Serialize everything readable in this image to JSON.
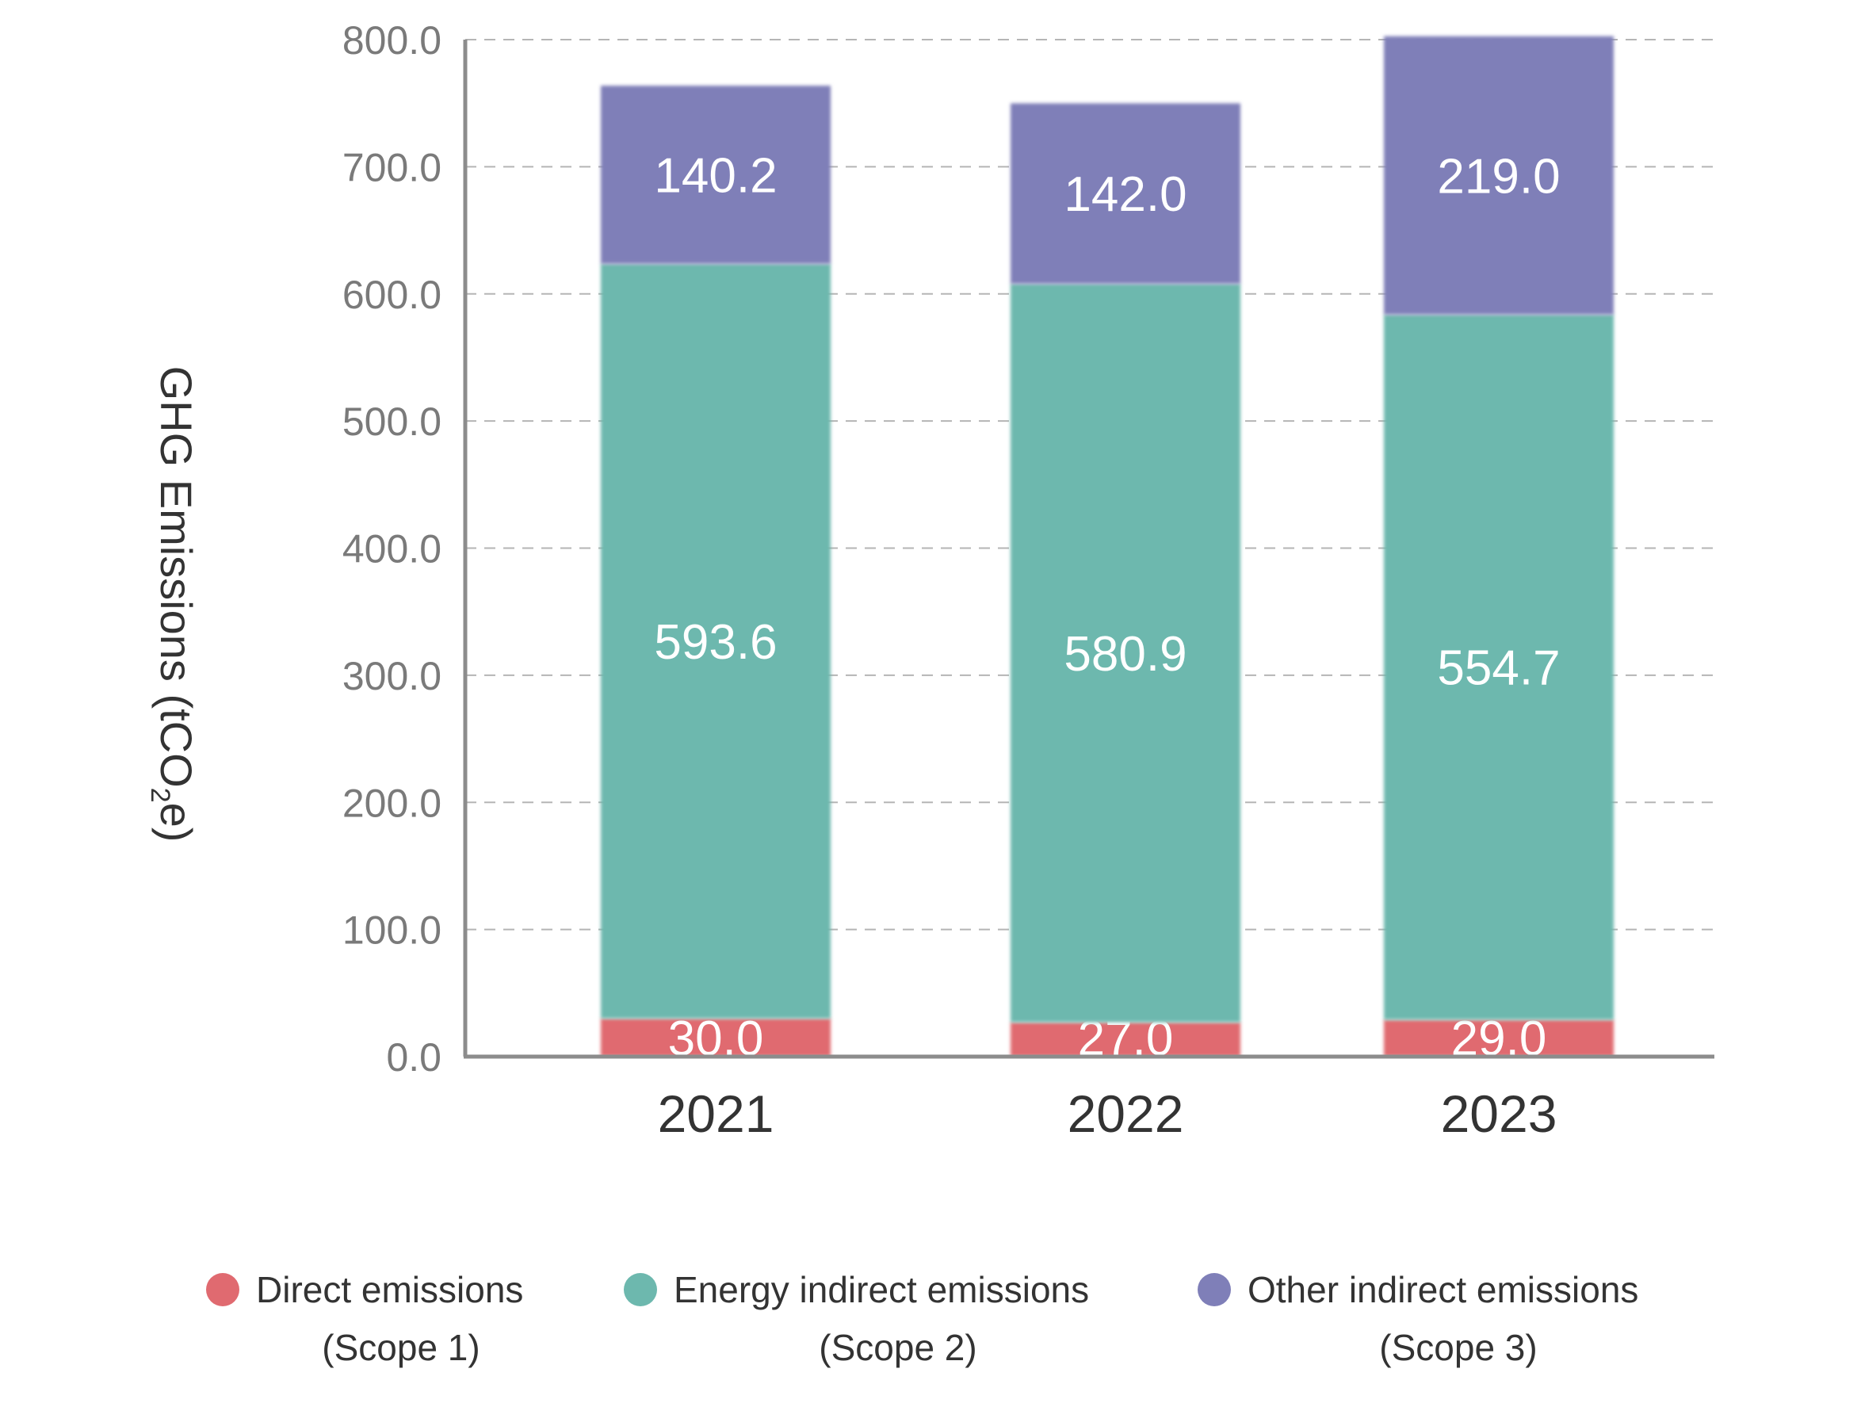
{
  "chart_data": {
    "type": "bar",
    "stacked": true,
    "categories": [
      "2021",
      "2022",
      "2023"
    ],
    "series": [
      {
        "name": [
          "Direct emissions",
          "(Scope 1)"
        ],
        "color": "#e06a70",
        "values": [
          30.0,
          27.0,
          29.0
        ],
        "labels": [
          "30.0",
          "27.0",
          "29.0"
        ]
      },
      {
        "name": [
          "Energy indirect emissions",
          "(Scope 2)"
        ],
        "color": "#6db8ae",
        "values": [
          593.6,
          580.9,
          554.7
        ],
        "labels": [
          "593.6",
          "580.9",
          "554.7"
        ]
      },
      {
        "name": [
          "Other indirect emissions",
          "(Scope 3)"
        ],
        "color": "#7f7fb8",
        "values": [
          140.2,
          142.0,
          219.0
        ],
        "labels": [
          "140.2",
          "142.0",
          "219.0"
        ]
      }
    ],
    "ylabel": {
      "main": "GHG Emissions (tCO",
      "sub": "2",
      "end": "e)"
    },
    "ylim": [
      0,
      800
    ],
    "yticks": [
      0,
      100,
      200,
      300,
      400,
      500,
      600,
      700,
      800
    ],
    "ytick_labels": [
      "0.0",
      "100.0",
      "200.0",
      "300.0",
      "400.0",
      "500.0",
      "600.0",
      "700.0",
      "800.0"
    ],
    "grid": true,
    "legend_position": "bottom"
  }
}
